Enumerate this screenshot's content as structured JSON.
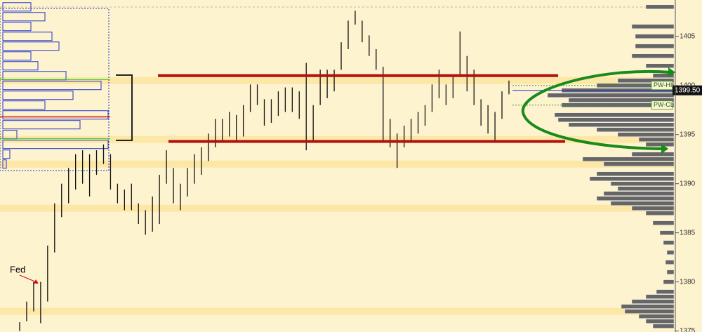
{
  "chart_data": {
    "type": "ohlc",
    "ylim": [
      1374.9,
      1408.7
    ],
    "yticks": [
      1375,
      1380,
      1385,
      1390,
      1395,
      1400,
      1405
    ],
    "color": "#111111",
    "highs": [
      1375.9,
      1378,
      1380,
      1380,
      1383.7,
      1388,
      1390,
      1391.6,
      1393,
      1393.4,
      1393,
      1393.4,
      1394,
      1393,
      1390,
      1389.4,
      1390,
      1388,
      1387.3,
      1388.7,
      1390.9,
      1393.4,
      1391.6,
      1390,
      1391.6,
      1393,
      1393.7,
      1395.1,
      1396.6,
      1396.6,
      1397.3,
      1397,
      1398,
      1400.1,
      1400.1,
      1398.6,
      1398.6,
      1399.4,
      1399.8,
      1399.8,
      1399.4,
      1402.3,
      1398,
      1401.6,
      1401.6,
      1401.6,
      1404.4,
      1406.6,
      1407.6,
      1406.6,
      1405.1,
      1403.7,
      1401.9,
      1396.6,
      1395.1,
      1395.9,
      1396.6,
      1397.3,
      1398,
      1400.1,
      1401.6,
      1400.1,
      1400.9,
      1405.5,
      1403,
      1401.6,
      1398.6,
      1398,
      1397.3,
      1399.4,
      1400.5
    ],
    "lows": [
      1375,
      1376,
      1377,
      1375.8,
      1378,
      1383,
      1386.6,
      1388,
      1389.4,
      1390,
      1388.7,
      1390.9,
      1392,
      1389.4,
      1388,
      1387.3,
      1387.3,
      1385.9,
      1384.8,
      1385.1,
      1385.9,
      1390,
      1388,
      1387.3,
      1388.7,
      1390,
      1390.9,
      1392.3,
      1393.7,
      1394.4,
      1394.8,
      1394.4,
      1394.8,
      1397.3,
      1398,
      1395.9,
      1396.2,
      1396.9,
      1397.3,
      1397.3,
      1396.6,
      1393.4,
      1394.4,
      1398,
      1398.7,
      1399.4,
      1401.6,
      1403.7,
      1406.2,
      1404.4,
      1403,
      1401.6,
      1394.4,
      1393.7,
      1391.6,
      1393.7,
      1394.4,
      1395.1,
      1395.9,
      1397.3,
      1398.7,
      1398,
      1398.7,
      1400.9,
      1399.4,
      1398,
      1395.9,
      1395.1,
      1394.4,
      1396.6,
      1399.1
    ],
    "profile": {
      "color": "#666666",
      "prices": [
        1408,
        1406,
        1405,
        1404,
        1403,
        1402,
        1401,
        1400.5,
        1400,
        1399.5,
        1399,
        1398.5,
        1398,
        1397,
        1396.5,
        1396,
        1395.5,
        1395,
        1394.5,
        1394,
        1393,
        1392.5,
        1392,
        1391,
        1390.5,
        1390,
        1389.5,
        1389,
        1388.5,
        1388,
        1387.5,
        1387,
        1386,
        1385,
        1384,
        1383,
        1382,
        1381,
        1380,
        1379,
        1378.5,
        1378,
        1377.5,
        1377,
        1376.5,
        1376,
        1375.5
      ],
      "volumes": [
        40,
        60,
        55,
        55,
        60,
        40,
        30,
        80,
        110,
        160,
        180,
        150,
        160,
        170,
        165,
        150,
        110,
        80,
        50,
        40,
        60,
        130,
        100,
        110,
        120,
        90,
        80,
        100,
        110,
        90,
        60,
        40,
        30,
        20,
        15,
        10,
        12,
        10,
        15,
        25,
        40,
        60,
        75,
        70,
        50,
        40,
        30
      ]
    },
    "left_profile": {
      "color": "#2233cc",
      "prices": [
        1392,
        1393,
        1394,
        1395,
        1396,
        1397,
        1398,
        1399,
        1400,
        1401,
        1402,
        1403,
        1404,
        1405,
        1406,
        1407,
        1408
      ],
      "volumes": [
        5,
        10,
        150,
        20,
        110,
        150,
        60,
        100,
        140,
        90,
        50,
        40,
        80,
        70,
        40,
        60,
        40
      ]
    },
    "poc": 1396.8,
    "value_area": [
      1400.6,
      1394.6
    ],
    "levels": [
      1401,
      1394.3
    ],
    "zones": [
      1400.5,
      1394.5,
      1392,
      1387.5,
      1377
    ],
    "markers": [
      {
        "label": "PW-HI",
        "value": 1400
      },
      {
        "label": "PW-CL",
        "value": 1398
      }
    ],
    "last": {
      "values": [
        1399.5
      ],
      "value_labels": [
        "1399.50"
      ]
    },
    "annotations": [
      {
        "text": "Fed"
      }
    ]
  }
}
